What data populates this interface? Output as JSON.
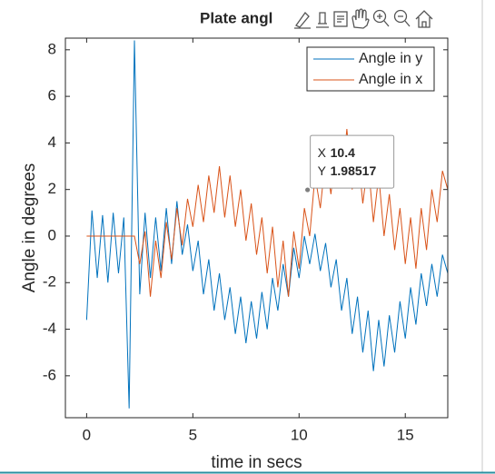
{
  "chart_data": {
    "type": "line",
    "title": "Plate angl",
    "xlabel": "time in secs",
    "ylabel": "Angle in degrees",
    "x": [
      0,
      0.25,
      0.5,
      0.75,
      1,
      1.25,
      1.5,
      1.75,
      2,
      2.25,
      2.5,
      2.75,
      3,
      3.25,
      3.5,
      3.75,
      4,
      4.25,
      4.5,
      4.75,
      5,
      5.25,
      5.5,
      5.75,
      6,
      6.25,
      6.5,
      6.75,
      7,
      7.25,
      7.5,
      7.75,
      8,
      8.25,
      8.5,
      8.75,
      9,
      9.25,
      9.5,
      9.75,
      10,
      10.25,
      10.5,
      10.75,
      11,
      11.25,
      11.5,
      11.75,
      12,
      12.25,
      12.5,
      12.75,
      13,
      13.25,
      13.5,
      13.75,
      14,
      14.25,
      14.5,
      14.75,
      15,
      15.25,
      15.5,
      15.75,
      16,
      16.25,
      16.5,
      16.75,
      17
    ],
    "series": [
      {
        "name": "Angle in y",
        "color": "#0072BD",
        "values": [
          -3.6,
          1.1,
          -1.8,
          0.9,
          -2.0,
          1.0,
          -1.6,
          0.8,
          -7.4,
          8.4,
          -2.5,
          1.0,
          -1.8,
          0.8,
          -1.5,
          1.2,
          -1.2,
          1.5,
          -0.8,
          0.5,
          -1.5,
          -0.2,
          -2.5,
          -1.0,
          -3.2,
          -1.6,
          -3.6,
          -2.2,
          -4.2,
          -2.6,
          -4.6,
          -2.8,
          -4.4,
          -2.4,
          -4.0,
          -1.8,
          -3.2,
          -1.2,
          -2.6,
          -0.5,
          -1.8,
          0.0,
          -1.2,
          0.1,
          -1.5,
          -0.3,
          -2.2,
          -1.0,
          -3.2,
          -1.8,
          -4.2,
          -2.6,
          -5.0,
          -3.2,
          -5.8,
          -3.6,
          -5.6,
          -3.4,
          -5.0,
          -2.8,
          -4.4,
          -2.2,
          -3.8,
          -1.6,
          -3.0,
          -1.2,
          -2.6,
          -0.8,
          -1.6
        ]
      },
      {
        "name": "Angle in x",
        "color": "#D95319",
        "values": [
          0,
          0,
          0,
          0,
          0,
          0,
          0,
          0,
          0,
          0,
          -1.2,
          0.2,
          -2.6,
          -0.2,
          -1.8,
          0.6,
          -1.0,
          1.2,
          -0.4,
          1.6,
          0.4,
          2.2,
          0.6,
          2.6,
          1.0,
          3.0,
          0.8,
          2.6,
          0.4,
          2.0,
          -0.2,
          1.4,
          -0.8,
          0.8,
          -1.6,
          0.4,
          -2.2,
          -0.2,
          -2.6,
          0.2,
          -1.4,
          1.2,
          0.0,
          2.6,
          1.2,
          3.4,
          1.8,
          4.0,
          2.2,
          4.6,
          2.0,
          3.8,
          1.4,
          3.2,
          0.6,
          2.6,
          0.0,
          1.8,
          -0.6,
          1.2,
          -1.2,
          0.8,
          -1.4,
          1.2,
          -0.6,
          2.0,
          0.6,
          2.8,
          2.0
        ]
      }
    ],
    "xlim": [
      -1,
      17
    ],
    "xticks": [
      0,
      5,
      10,
      15
    ],
    "ylim": [
      -7.8,
      8.5
    ],
    "yticks": [
      -6,
      -4,
      -2,
      0,
      2,
      4,
      6,
      8
    ],
    "legend": "upper right",
    "datatip": {
      "x_label": "X",
      "x": 10.4,
      "y_label": "Y",
      "y": 1.98517
    }
  }
}
